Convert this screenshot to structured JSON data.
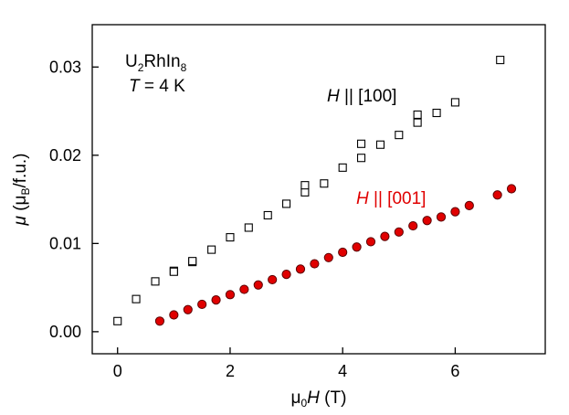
{
  "chart_data": {
    "type": "scatter",
    "title": "",
    "xlabel": {
      "prefix": "μ",
      "sub": "0",
      "italic": "H",
      "suffix": " (T)"
    },
    "ylabel": {
      "italic": "μ",
      "paren_open": " (μ",
      "sub": "B",
      "suffix": "/f.u.)"
    },
    "xlim": [
      -0.45,
      7.6
    ],
    "ylim": [
      -0.0025,
      0.0348
    ],
    "xticks": [
      0,
      2,
      4,
      6
    ],
    "xtick_labels": [
      "0",
      "2",
      "4",
      "6"
    ],
    "yticks": [
      0.0,
      0.01,
      0.02,
      0.03
    ],
    "ytick_labels": [
      "0.00",
      "0.01",
      "0.02",
      "0.03"
    ],
    "grid": false,
    "annotation": {
      "compound": {
        "base1": "U",
        "sub1": "2",
        "base2": "RhIn",
        "sub2": "8"
      },
      "temperature": {
        "italic": "T",
        "rest": " = 4 K"
      }
    },
    "series": [
      {
        "name": "H || [100]",
        "label": {
          "italic": "H",
          "rest": " || [100]"
        },
        "marker": "open-square",
        "color": "#000000",
        "x": [
          0.0,
          0.33,
          0.67,
          1.0,
          1.33,
          1.67,
          2.0,
          2.33,
          2.67,
          3.0,
          3.33,
          3.67,
          4.0,
          4.33,
          4.67,
          5.0,
          5.33,
          5.67,
          6.0,
          6.8
        ],
        "y": [
          0.0012,
          0.0037,
          0.0057,
          0.0069,
          0.0079,
          0.0093,
          0.0107,
          0.0118,
          0.0132,
          0.0145,
          0.0158,
          0.0168,
          0.0186,
          0.0197,
          0.0212,
          0.0223,
          0.0237,
          0.0248,
          0.026,
          0.0308
        ],
        "extra_points": {
          "x": [
            1.0,
            1.33,
            3.33,
            4.33,
            5.33
          ],
          "y": [
            0.0068,
            0.008,
            0.0166,
            0.0213,
            0.0246
          ]
        }
      },
      {
        "name": "H || [001]",
        "label": {
          "italic": "H",
          "rest": " || [001]"
        },
        "marker": "filled-circle",
        "color": "#e00000",
        "edge_color": "#5a0000",
        "x": [
          0.75,
          1.0,
          1.25,
          1.5,
          1.75,
          2.0,
          2.25,
          2.5,
          2.75,
          3.0,
          3.25,
          3.5,
          3.75,
          4.0,
          4.25,
          4.5,
          4.75,
          5.0,
          5.25,
          5.5,
          5.75,
          6.0,
          6.25,
          6.75,
          7.0
        ],
        "y": [
          0.0012,
          0.0019,
          0.0025,
          0.0031,
          0.0036,
          0.0042,
          0.0048,
          0.0053,
          0.0059,
          0.0065,
          0.0071,
          0.0077,
          0.0084,
          0.009,
          0.0096,
          0.0102,
          0.0108,
          0.0113,
          0.012,
          0.0126,
          0.013,
          0.0136,
          0.0143,
          0.0155,
          0.0162
        ]
      }
    ]
  }
}
